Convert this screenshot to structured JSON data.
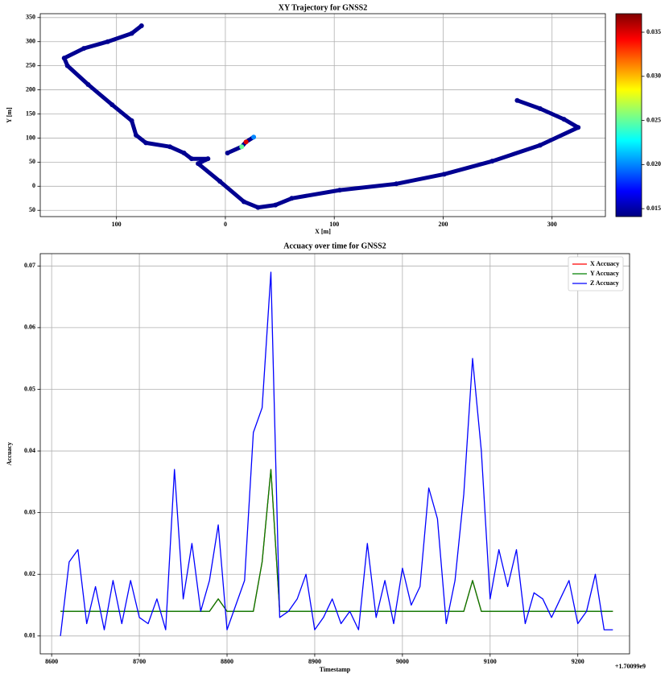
{
  "chart_data": [
    {
      "type": "scatter",
      "title": "XY Trajectory for GNSS2",
      "xlabel": "X [m]",
      "ylabel": "Y [m]",
      "x": [
        -77,
        -86,
        -108,
        -130,
        -148,
        -145,
        -126,
        -104,
        -86,
        -82,
        -73,
        -51,
        -38,
        -31,
        -16,
        -25,
        -5,
        17,
        30,
        46,
        61,
        105,
        157,
        201,
        245,
        289,
        324,
        311,
        289,
        268,
        null,
        2,
        15,
        19,
        26
      ],
      "y": [
        333,
        317,
        300,
        286,
        266,
        250,
        211,
        169,
        136,
        106,
        90,
        82,
        69,
        57,
        57,
        47,
        10,
        -32,
        -44,
        -39,
        -25,
        -8,
        5,
        25,
        52,
        85,
        122,
        139,
        161,
        178,
        null,
        69,
        82,
        92,
        102
      ],
      "c": [
        0.0145,
        0.0145,
        0.0145,
        0.0145,
        0.0145,
        0.0145,
        0.0145,
        0.0145,
        0.0145,
        0.0145,
        0.0145,
        0.0145,
        0.0145,
        0.0145,
        0.0145,
        0.0145,
        0.0145,
        0.0145,
        0.0145,
        0.0145,
        0.0145,
        0.0145,
        0.0145,
        0.0145,
        0.0145,
        0.0145,
        0.0145,
        0.0145,
        0.0145,
        0.0145,
        null,
        0.0145,
        0.025,
        0.035,
        0.02
      ],
      "colormap": "jet",
      "clim": [
        0.0141,
        0.0371
      ],
      "cticks": [
        0.015,
        {
          "value": 0.02,
          "label": "0.020"
        },
        0.025,
        {
          "value": 0.03,
          "label": "0.030"
        },
        0.035
      ],
      "xlim": [
        -170,
        349
      ],
      "ylim": [
        -63,
        358
      ],
      "xticks": [
        {
          "value": -100,
          "label": "100"
        },
        0,
        100,
        200,
        300
      ],
      "yticks": [
        {
          "value": -50,
          "label": "50"
        },
        0,
        50,
        100,
        150,
        200,
        250,
        300,
        350
      ],
      "grid": true
    },
    {
      "type": "line",
      "title": "Accuacy over time for GNSS2",
      "xlabel": "Timestamp",
      "ylabel": "Accuacy",
      "x_offset_label": "+1.70099e9",
      "x": [
        8610,
        8620,
        8630,
        8640,
        8650,
        8660,
        8670,
        8680,
        8690,
        8700,
        8710,
        8720,
        8730,
        8740,
        8750,
        8760,
        8770,
        8780,
        8790,
        8800,
        8810,
        8820,
        8830,
        8840,
        8850,
        8860,
        8870,
        8880,
        8890,
        8900,
        8910,
        8920,
        8930,
        8940,
        8950,
        8960,
        8970,
        8980,
        8990,
        9000,
        9010,
        9020,
        9030,
        9040,
        9050,
        9060,
        9070,
        9080,
        9090,
        9100,
        9110,
        9120,
        9130,
        9140,
        9150,
        9160,
        9170,
        9180,
        9190,
        9200,
        9210,
        9220,
        9230,
        9240
      ],
      "series": [
        {
          "name": "X Accuacy",
          "color": "#ff0000",
          "values": [
            0.014,
            0.014,
            0.014,
            0.014,
            0.014,
            0.014,
            0.014,
            0.014,
            0.014,
            0.014,
            0.014,
            0.014,
            0.014,
            0.014,
            0.014,
            0.014,
            0.014,
            0.014,
            0.016,
            0.014,
            0.014,
            0.014,
            0.014,
            0.022,
            0.037,
            0.014,
            0.014,
            0.014,
            0.014,
            0.014,
            0.014,
            0.014,
            0.014,
            0.014,
            0.014,
            0.014,
            0.014,
            0.014,
            0.014,
            0.014,
            0.014,
            0.014,
            0.014,
            0.014,
            0.014,
            0.014,
            0.014,
            0.019,
            0.014,
            0.014,
            0.014,
            0.014,
            0.014,
            0.014,
            0.014,
            0.014,
            0.014,
            0.014,
            0.014,
            0.014,
            0.014,
            0.014,
            0.014,
            0.014
          ]
        },
        {
          "name": "Y Accuacy",
          "color": "#008000",
          "values": [
            0.014,
            0.014,
            0.014,
            0.014,
            0.014,
            0.014,
            0.014,
            0.014,
            0.014,
            0.014,
            0.014,
            0.014,
            0.014,
            0.014,
            0.014,
            0.014,
            0.014,
            0.014,
            0.016,
            0.014,
            0.014,
            0.014,
            0.014,
            0.022,
            0.037,
            0.014,
            0.014,
            0.014,
            0.014,
            0.014,
            0.014,
            0.014,
            0.014,
            0.014,
            0.014,
            0.014,
            0.014,
            0.014,
            0.014,
            0.014,
            0.014,
            0.014,
            0.014,
            0.014,
            0.014,
            0.014,
            0.014,
            0.019,
            0.014,
            0.014,
            0.014,
            0.014,
            0.014,
            0.014,
            0.014,
            0.014,
            0.014,
            0.014,
            0.014,
            0.014,
            0.014,
            0.014,
            0.014,
            0.014
          ]
        },
        {
          "name": "Z Accuacy",
          "color": "#0000ff",
          "values": [
            0.01,
            0.022,
            0.024,
            0.012,
            0.018,
            0.011,
            0.019,
            0.012,
            0.019,
            0.013,
            0.012,
            0.016,
            0.011,
            0.037,
            0.016,
            0.025,
            0.014,
            0.019,
            0.028,
            0.011,
            0.015,
            0.019,
            0.043,
            0.047,
            0.069,
            0.013,
            0.014,
            0.016,
            0.02,
            0.011,
            0.013,
            0.016,
            0.012,
            0.014,
            0.011,
            0.025,
            0.013,
            0.019,
            0.012,
            0.021,
            0.015,
            0.018,
            0.034,
            0.029,
            0.012,
            0.019,
            0.033,
            0.055,
            0.04,
            0.016,
            0.024,
            0.018,
            0.024,
            0.012,
            0.017,
            0.016,
            0.013,
            0.016,
            0.019,
            0.012,
            0.014,
            0.02,
            0.011,
            0.011
          ]
        }
      ],
      "legend": "upper right",
      "xlim": [
        8587,
        9259
      ],
      "ylim": [
        0.0071,
        0.072
      ],
      "xticks": [
        8600,
        8700,
        8800,
        8900,
        9000,
        9100,
        9200
      ],
      "yticks": [
        0.01,
        0.02,
        0.03,
        0.04,
        0.05,
        0.06,
        0.07
      ],
      "grid": true
    }
  ]
}
